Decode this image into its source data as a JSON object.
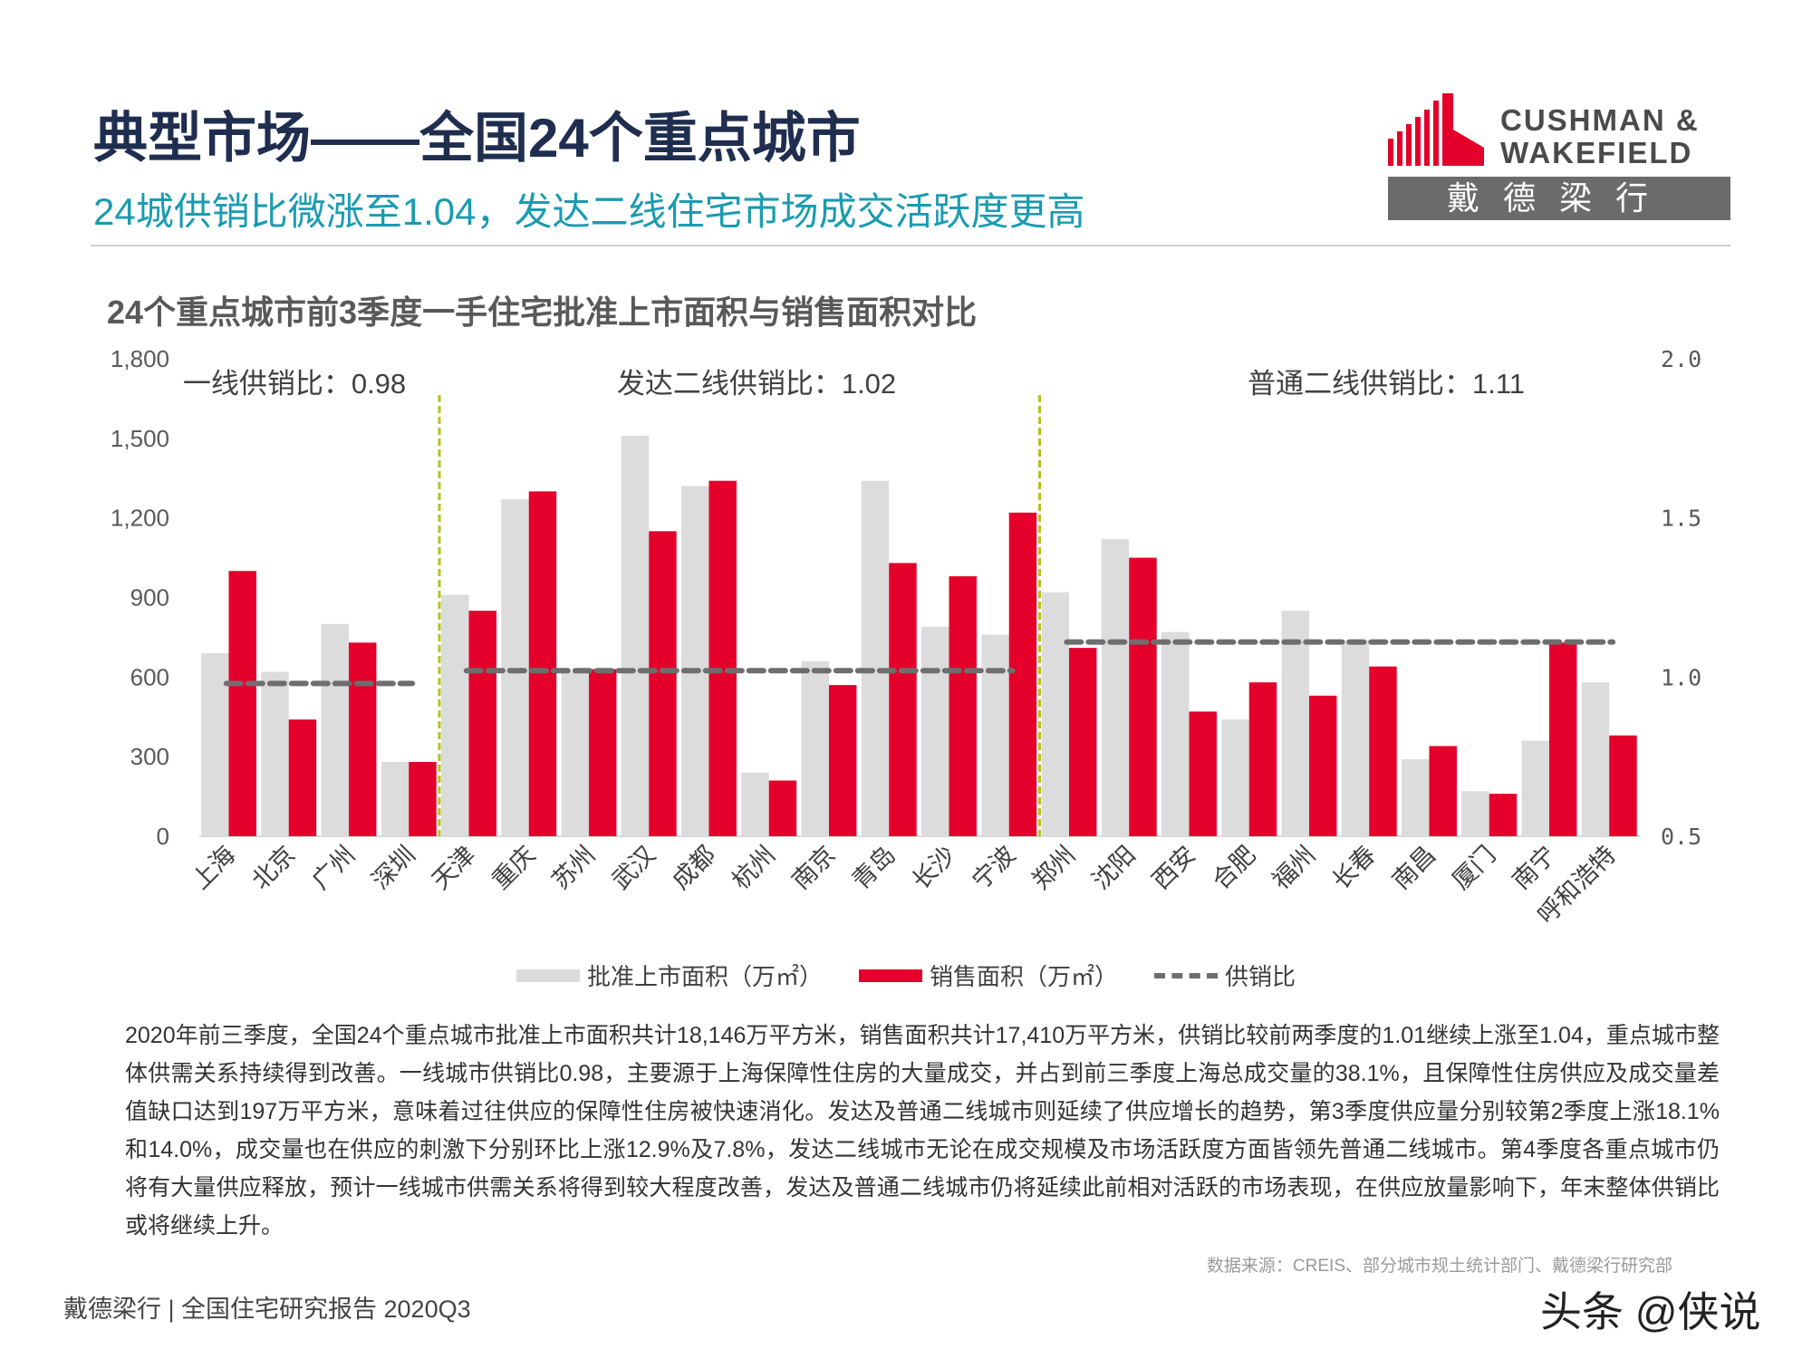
{
  "header": {
    "title": "典型市场——全国24个重点城市",
    "subtitle": "24城供销比微涨至1.04，发达二线住宅市场成交活跃度更高"
  },
  "logo": {
    "brand": "CUSHMAN & WAKEFIELD",
    "brand_line1": "CUSHMAN &",
    "brand_line2": "WAKEFIELD",
    "chinese": "戴德梁行",
    "color": "#e4002b"
  },
  "chart_data": {
    "type": "bar",
    "title": "24个重点城市前3季度一手住宅批准上市面积与销售面积对比",
    "categories": [
      "上海",
      "北京",
      "广州",
      "深圳",
      "天津",
      "重庆",
      "苏州",
      "武汉",
      "成都",
      "杭州",
      "南京",
      "青岛",
      "长沙",
      "宁波",
      "郑州",
      "沈阳",
      "西安",
      "合肥",
      "福州",
      "长春",
      "南昌",
      "厦门",
      "南宁",
      "呼和浩特"
    ],
    "series": [
      {
        "name": "批准上市面积（万㎡）",
        "color": "#dcdcdc",
        "axis": "left",
        "values": [
          690,
          620,
          800,
          280,
          910,
          1270,
          620,
          1510,
          1320,
          240,
          660,
          1340,
          790,
          760,
          920,
          1120,
          770,
          440,
          850,
          740,
          290,
          170,
          360,
          580
        ]
      },
      {
        "name": "销售面积（万㎡）",
        "color": "#e4002b",
        "axis": "left",
        "values": [
          1000,
          440,
          730,
          280,
          850,
          1300,
          630,
          1150,
          1340,
          210,
          570,
          1030,
          980,
          1220,
          710,
          1050,
          470,
          580,
          530,
          640,
          340,
          160,
          730,
          380
        ]
      },
      {
        "name": "供销比",
        "color": "#6e6e6e",
        "axis": "right",
        "style": "dashed",
        "segments": [
          {
            "from": "上海",
            "to": "深圳",
            "value": 0.98
          },
          {
            "from": "天津",
            "to": "宁波",
            "value": 1.02
          },
          {
            "from": "郑州",
            "to": "呼和浩特",
            "value": 1.11
          }
        ]
      }
    ],
    "y_left": {
      "range": [
        0,
        1800
      ],
      "ticks": [
        "0",
        "300",
        "600",
        "900",
        "1,200",
        "1,500",
        "1,800"
      ]
    },
    "y_right": {
      "range": [
        0.5,
        2.0
      ],
      "ticks": [
        "0.5",
        "1.0",
        "1.5",
        "2.0"
      ]
    },
    "group_dividers_after": [
      "深圳",
      "宁波"
    ],
    "divider_color": "#b5c21e",
    "annotations": [
      "一线供销比：0.98",
      "发达二线供销比：1.02",
      "普通二线供销比：1.11"
    ],
    "legend": [
      "批准上市面积（万㎡）",
      "销售面积（万㎡）",
      "供销比"
    ],
    "legend_position": "bottom",
    "grid": false
  },
  "body": {
    "paragraph": "2020年前三季度，全国24个重点城市批准上市面积共计18,146万平方米，销售面积共计17,410万平方米，供销比较前两季度的1.01继续上涨至1.04，重点城市整体供需关系持续得到改善。一线城市供销比0.98，主要源于上海保障性住房的大量成交，并占到前三季度上海总成交量的38.1%，且保障性住房供应及成交量差值缺口达到197万平方米，意味着过往供应的保障性住房被快速消化。发达及普通二线城市则延续了供应增长的趋势，第3季度供应量分别较第2季度上涨18.1%和14.0%，成交量也在供应的刺激下分别环比上涨12.9%及7.8%，发达二线城市无论在成交规模及市场活跃度方面皆领先普通二线城市。第4季度各重点城市仍将有大量供应释放，预计一线城市供需关系将得到较大程度改善，发达及普通二线城市仍将延续此前相对活跃的市场表现，在供应放量影响下，年末整体供销比或将继续上升。",
    "source": "数据来源：CREIS、部分城市规土统计部门、戴德梁行研究部"
  },
  "footer": {
    "text": "戴德梁行 | 全国住宅研究报告 2020Q3",
    "watermark": "头条 @侠说"
  }
}
